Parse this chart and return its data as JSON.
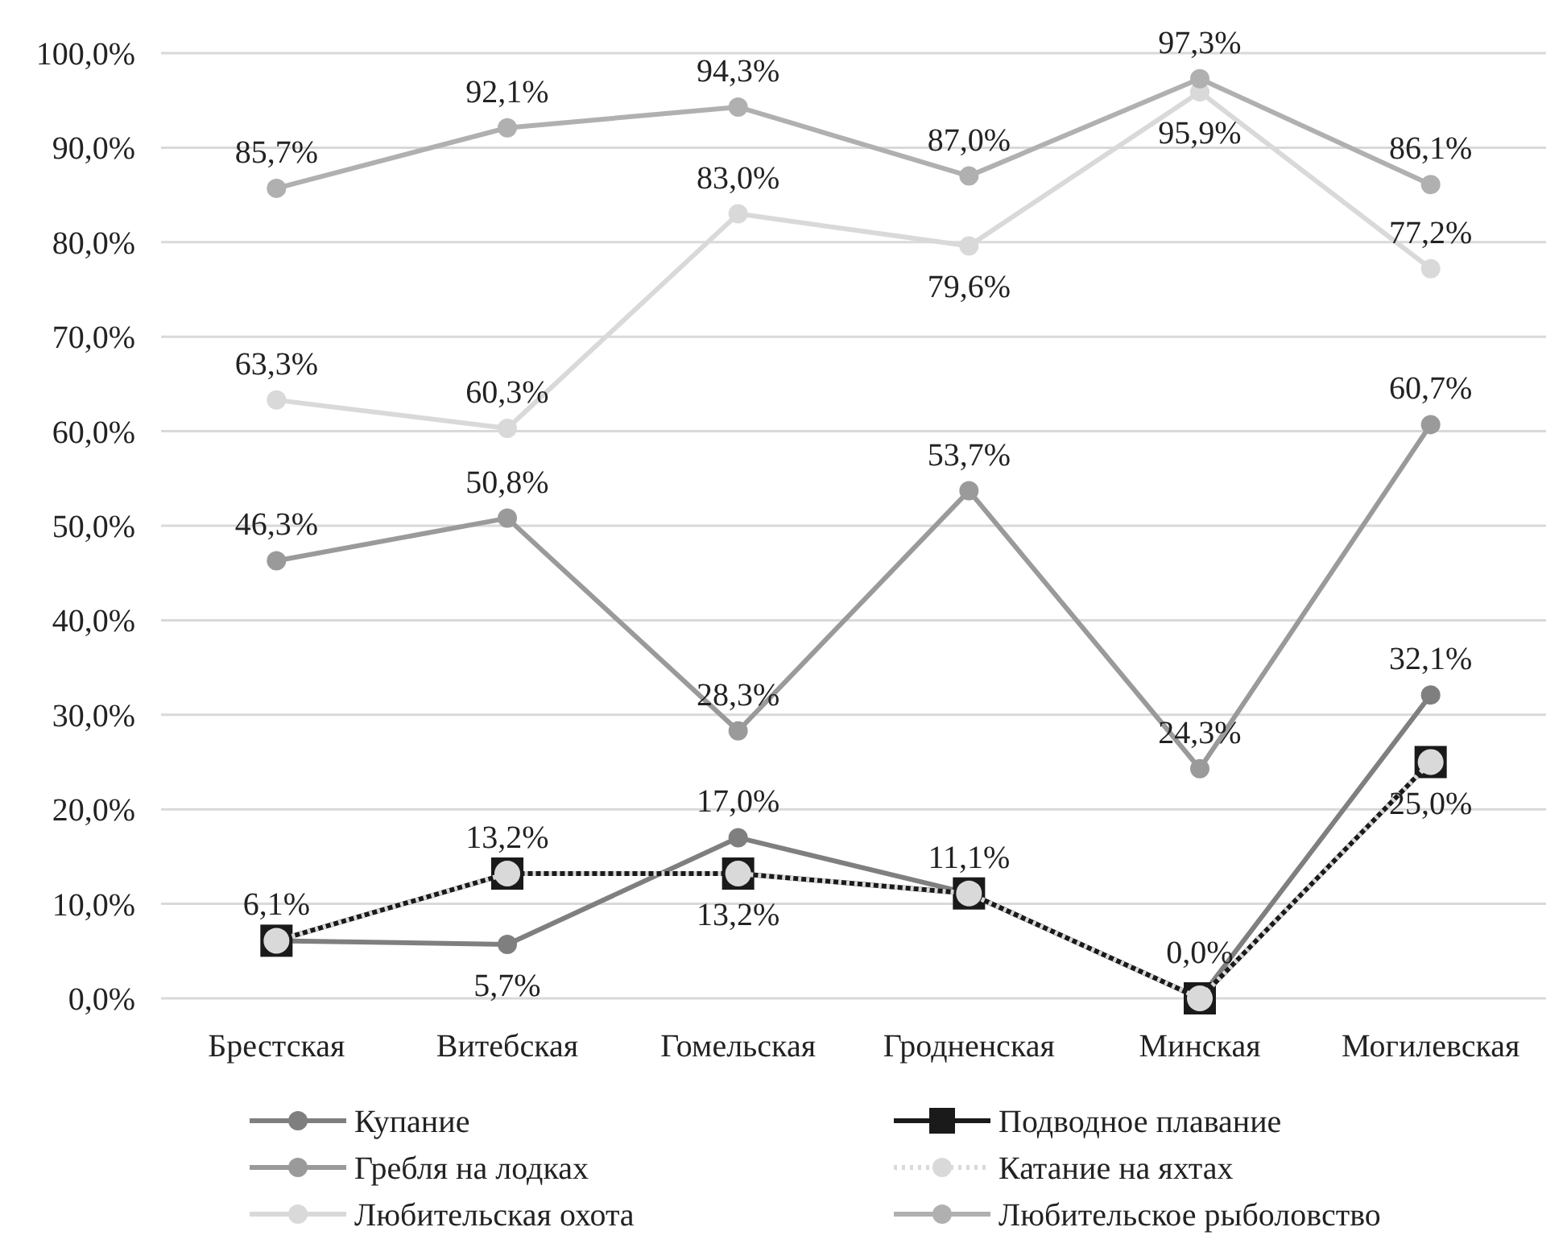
{
  "chart_data": {
    "type": "line",
    "categories": [
      "Брестская",
      "Витебская",
      "Гомельская",
      "Гродненская",
      "Минская",
      "Могилевская"
    ],
    "ylim": [
      0,
      100
    ],
    "yticks": [
      {
        "value": 0,
        "label": "0,0%"
      },
      {
        "value": 10,
        "label": "10,0%"
      },
      {
        "value": 20,
        "label": "20,0%"
      },
      {
        "value": 30,
        "label": "30,0%"
      },
      {
        "value": 40,
        "label": "40,0%"
      },
      {
        "value": 50,
        "label": "50,0%"
      },
      {
        "value": 60,
        "label": "60,0%"
      },
      {
        "value": 70,
        "label": "70,0%"
      },
      {
        "value": 80,
        "label": "80,0%"
      },
      {
        "value": 90,
        "label": "90,0%"
      },
      {
        "value": 100,
        "label": "100,0%"
      }
    ],
    "grid": "y",
    "legend": "bottom",
    "series": [
      {
        "name": "Купание",
        "color": "#7f7f7f",
        "marker": "circle",
        "values": [
          6.1,
          5.7,
          17.0,
          11.1,
          0.0,
          32.1
        ],
        "value_labels": [
          "6,1%",
          "5,7%",
          "17,0%",
          "11,1%",
          "0,0%",
          "32,1%"
        ]
      },
      {
        "name": "Подводное плавание",
        "color": "#1a1a1a",
        "marker": "square",
        "values": [
          6.1,
          13.2,
          13.2,
          11.1,
          0.0,
          25.0
        ],
        "value_labels": [
          null,
          "13,2%",
          null,
          null,
          null,
          "25,0%"
        ]
      },
      {
        "name": "Гребля на лодках",
        "color": "#9a9a9a",
        "marker": "circle",
        "values": [
          46.3,
          50.8,
          28.3,
          53.7,
          24.3,
          60.7
        ],
        "value_labels": [
          "46,3%",
          "50,8%",
          "28,3%",
          "53,7%",
          "24,3%",
          "60,7%"
        ]
      },
      {
        "name": "Катание на яхтах",
        "color": "#d9d9d9",
        "marker": "circle",
        "line_style": "dotted",
        "values": [
          6.1,
          13.2,
          13.2,
          11.1,
          0.0,
          25.0
        ],
        "value_labels": [
          null,
          null,
          "13,2%",
          null,
          null,
          null
        ]
      },
      {
        "name": "Любительская охота",
        "color": "#d9d9d9",
        "marker": "circle",
        "values": [
          63.3,
          60.3,
          83.0,
          79.6,
          95.9,
          77.2
        ],
        "value_labels": [
          "63,3%",
          "60,3%",
          "83,0%",
          "79,6%",
          "95,9%",
          "77,2%"
        ]
      },
      {
        "name": "Любительское рыболовство",
        "color": "#b0b0b0",
        "marker": "circle",
        "values": [
          85.7,
          92.1,
          94.3,
          87.0,
          97.3,
          86.1
        ],
        "value_labels": [
          "85,7%",
          "92,1%",
          "94,3%",
          "87,0%",
          "97,3%",
          "86,1%"
        ]
      }
    ]
  }
}
